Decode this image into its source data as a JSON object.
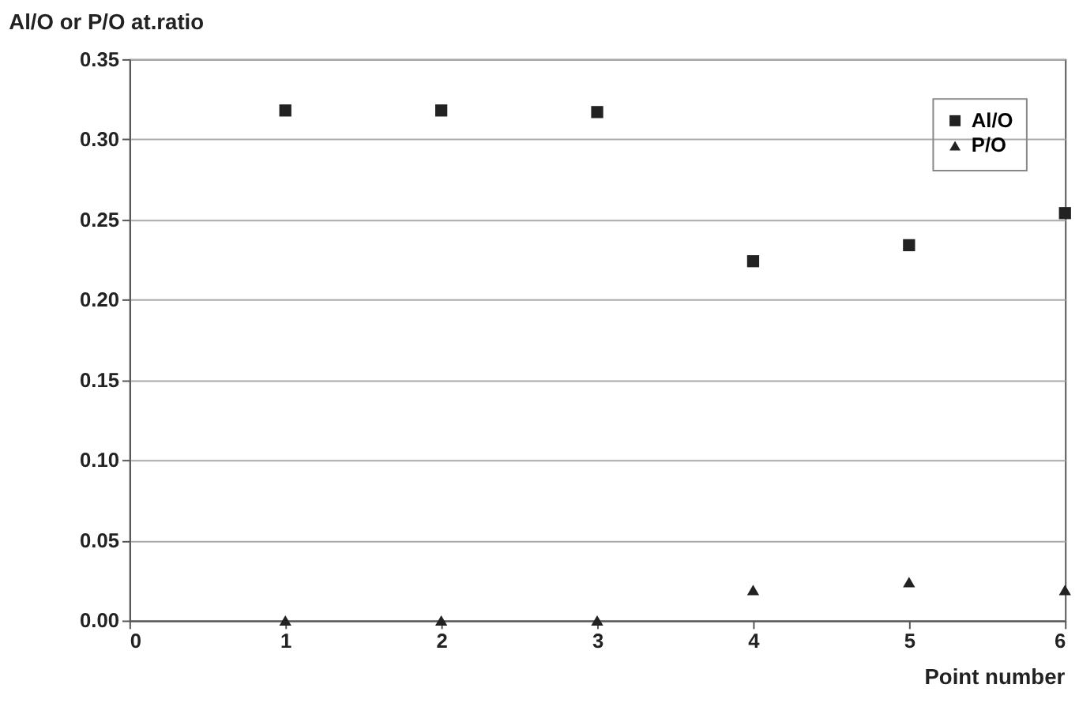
{
  "chart_data": {
    "type": "scatter",
    "ylabel": "Al/O or P/O at.ratio",
    "xlabel": "Point number",
    "x": [
      1,
      2,
      3,
      4,
      5,
      6
    ],
    "series": [
      {
        "name": "Al/O",
        "color": "#222222",
        "marker": "square",
        "values": [
          0.318,
          0.318,
          0.317,
          0.224,
          0.234,
          0.254
        ]
      },
      {
        "name": "P/O",
        "color": "#222222",
        "marker": "triangle",
        "values": [
          0,
          0,
          0,
          0.019,
          0.024,
          0.019
        ]
      }
    ],
    "xlim": [
      0,
      6
    ],
    "xticks": [
      0,
      1,
      2,
      3,
      4,
      5,
      6
    ],
    "ylim": [
      0,
      0.35
    ],
    "yticks": [
      {
        "value": 0,
        "label": "0.00"
      },
      {
        "value": 0.05,
        "label": "0.05"
      },
      {
        "value": 0.1,
        "label": "0.10"
      },
      {
        "value": 0.15,
        "label": "0.15"
      },
      {
        "value": 0.2,
        "label": "0.20"
      },
      {
        "value": 0.25,
        "label": "0.25"
      },
      {
        "value": 0.3,
        "label": "0.30"
      },
      {
        "value": 0.35,
        "label": "0.35"
      }
    ],
    "grid": "y",
    "legend": "top right"
  }
}
